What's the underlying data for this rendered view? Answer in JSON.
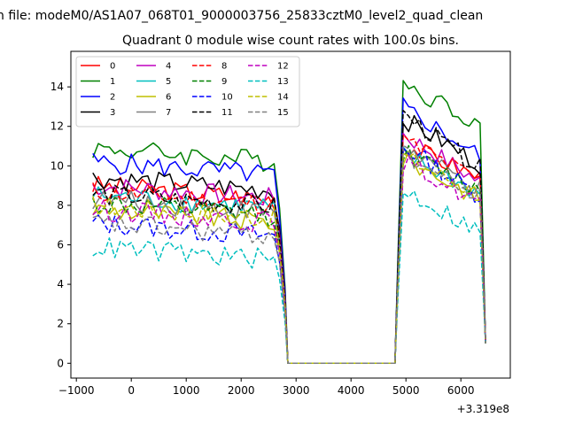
{
  "figure": {
    "suptitle": "n file: modeM0/AS1A07_068T01_9000003756_25833cztM0_level2_quad_clean",
    "offset_label": "+3.319e8"
  },
  "chart_data": {
    "type": "line",
    "title": "Quadrant 0 module wise count rates with 100.0s bins.",
    "xlabel": "",
    "ylabel": "",
    "x_offset": 331900000,
    "xlim": [
      -1100,
      6900
    ],
    "ylim": [
      -0.75,
      15.8
    ],
    "x_ticks": [
      -1000,
      0,
      1000,
      2000,
      3000,
      4000,
      5000,
      6000
    ],
    "x_tick_labels": [
      "−1000",
      "0",
      "1000",
      "2000",
      "3000",
      "4000",
      "5000",
      "6000"
    ],
    "y_ticks": [
      0,
      2,
      4,
      6,
      8,
      10,
      12,
      14
    ],
    "y_tick_labels": [
      "0",
      "2",
      "4",
      "6",
      "8",
      "10",
      "12",
      "14"
    ],
    "grid": false,
    "legend_placement": "top-left",
    "legend_columns": 4,
    "x_segments": [
      {
        "from": -700,
        "to": 2700,
        "step": 100
      },
      {
        "points": [
          2800,
          2850
        ]
      },
      {
        "from": 4850,
        "to": 6500,
        "step": 100
      }
    ],
    "series": [
      {
        "name": "0",
        "color": "#ff0000",
        "dash": "solid",
        "base": 9.0,
        "high": 11.1,
        "end": 9.3
      },
      {
        "name": "1",
        "color": "#008000",
        "dash": "solid",
        "base": 10.9,
        "high": 14.2,
        "end": 12.0
      },
      {
        "name": "2",
        "color": "#0000ff",
        "dash": "solid",
        "base": 10.2,
        "high": 13.0,
        "end": 10.3
      },
      {
        "name": "3",
        "color": "#000000",
        "dash": "solid",
        "base": 9.4,
        "high": 12.4,
        "end": 9.9
      },
      {
        "name": "4",
        "color": "#bf00bf",
        "dash": "solid",
        "base": 9.0,
        "high": 11.6,
        "end": 9.0
      },
      {
        "name": "5",
        "color": "#00bfbf",
        "dash": "solid",
        "base": 8.5,
        "high": 10.6,
        "end": 8.4
      },
      {
        "name": "6",
        "color": "#bfbf00",
        "dash": "solid",
        "base": 7.8,
        "high": 10.4,
        "end": 8.2
      },
      {
        "name": "7",
        "color": "#808080",
        "dash": "solid",
        "base": 8.3,
        "high": 10.9,
        "end": 8.6
      },
      {
        "name": "8",
        "color": "#ff0000",
        "dash": "dashed",
        "base": 8.7,
        "high": 11.3,
        "end": 9.1
      },
      {
        "name": "9",
        "color": "#008000",
        "dash": "dashed",
        "base": 8.1,
        "high": 10.7,
        "end": 8.6
      },
      {
        "name": "10",
        "color": "#0000ff",
        "dash": "dashed",
        "base": 7.1,
        "high": 11.0,
        "end": 8.3
      },
      {
        "name": "11",
        "color": "#000000",
        "dash": "dashed",
        "base": 8.6,
        "high": 12.6,
        "end": 9.7
      },
      {
        "name": "12",
        "color": "#bf00bf",
        "dash": "dashed",
        "base": 7.8,
        "high": 10.2,
        "end": 8.0
      },
      {
        "name": "13",
        "color": "#00bfbf",
        "dash": "dashed",
        "base": 5.9,
        "high": 8.8,
        "end": 6.5
      },
      {
        "name": "14",
        "color": "#bfbf00",
        "dash": "dashed",
        "base": 8.0,
        "high": 10.5,
        "end": 8.4
      },
      {
        "name": "15",
        "color": "#808080",
        "dash": "dashed",
        "base": 7.1,
        "high": 10.6,
        "end": 8.2
      }
    ]
  }
}
